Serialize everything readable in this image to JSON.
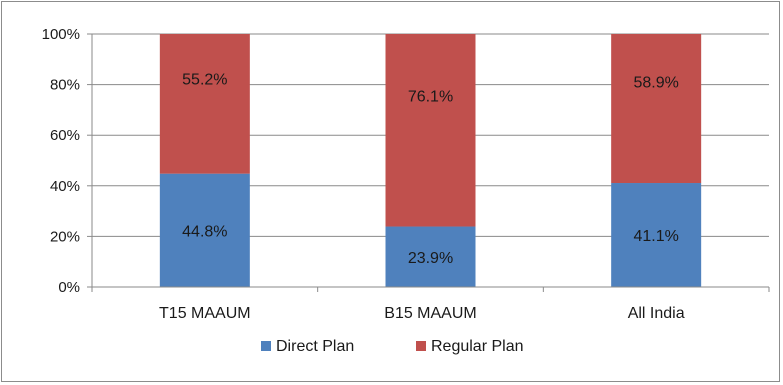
{
  "chart_data": {
    "type": "bar",
    "stacked": true,
    "percent_stacked": true,
    "categories": [
      "T15 MAAUM",
      "B15 MAAUM",
      "All India"
    ],
    "series": [
      {
        "name": "Direct Plan",
        "color": "#4f81bd",
        "values": [
          44.8,
          23.9,
          41.1
        ],
        "labels": [
          "44.8%",
          "23.9%",
          "41.1%"
        ]
      },
      {
        "name": "Regular Plan",
        "color": "#c0504d",
        "values": [
          55.2,
          76.1,
          58.9
        ],
        "labels": [
          "55.2%",
          "76.1%",
          "58.9%"
        ]
      }
    ],
    "y_ticks": [
      "0%",
      "20%",
      "40%",
      "60%",
      "80%",
      "100%"
    ],
    "ylim": [
      0,
      100
    ],
    "grid": true,
    "legend_position": "bottom"
  }
}
